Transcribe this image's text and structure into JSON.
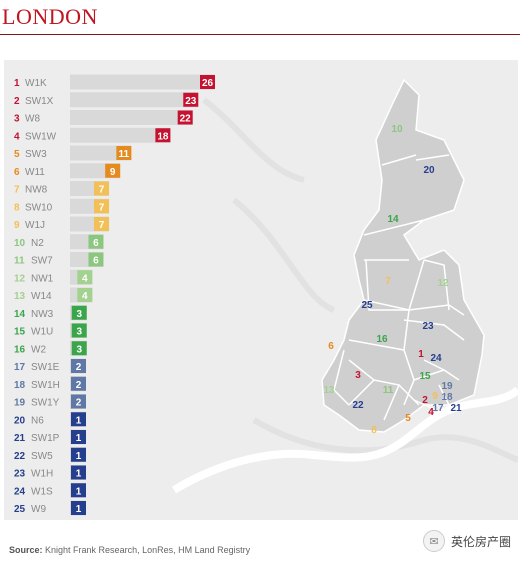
{
  "title": "LONDON",
  "source_label": "Source:",
  "source_text": "Knight Frank Research, LonRes, HM Land Registry",
  "brand": {
    "icon": "wechat-bubble-icon",
    "text": "英伦房产圈"
  },
  "colors": {
    "band_1_4": "#c41230",
    "band_5_6": "#e58a1f",
    "band_7_9": "#f2c056",
    "band_10_11": "#8bc77e",
    "band_12_13": "#a3d18f",
    "band_14_16": "#3aa54b",
    "band_17_19": "#5f78a6",
    "band_20_25": "#253f8e"
  },
  "chart_data": {
    "type": "bar",
    "orientation": "horizontal",
    "categories": [
      "W1K",
      "SW1X",
      "W8",
      "SW1W",
      "SW3",
      "W11",
      "NW8",
      "SW10",
      "W1J",
      "N2",
      "SW7",
      "NW1",
      "W14",
      "NW3",
      "W1U",
      "W2",
      "SW1E",
      "SW1H",
      "SW1Y",
      "N6",
      "SW1P",
      "SW5",
      "W1H",
      "W1S",
      "W9"
    ],
    "ranks": [
      1,
      2,
      3,
      4,
      5,
      6,
      7,
      8,
      9,
      10,
      11,
      12,
      13,
      14,
      15,
      16,
      17,
      18,
      19,
      20,
      21,
      22,
      23,
      24,
      25
    ],
    "values": [
      26,
      23,
      22,
      18,
      11,
      9,
      7,
      7,
      7,
      6,
      6,
      4,
      4,
      3,
      3,
      3,
      2,
      2,
      2,
      1,
      1,
      1,
      1,
      1,
      1
    ],
    "xlim": [
      0,
      26
    ],
    "grid": false,
    "legend": "none"
  },
  "map": {
    "labels": [
      {
        "rank": "10"
      },
      {
        "rank": "20"
      },
      {
        "rank": "14"
      },
      {
        "rank": "7"
      },
      {
        "rank": "12"
      },
      {
        "rank": "25"
      },
      {
        "rank": "23"
      },
      {
        "rank": "16"
      },
      {
        "rank": "6"
      },
      {
        "rank": "1"
      },
      {
        "rank": "24"
      },
      {
        "rank": "3"
      },
      {
        "rank": "15"
      },
      {
        "rank": "13"
      },
      {
        "rank": "11"
      },
      {
        "rank": "19"
      },
      {
        "rank": "22"
      },
      {
        "rank": "2"
      },
      {
        "rank": "9"
      },
      {
        "rank": "18"
      },
      {
        "rank": "5"
      },
      {
        "rank": "4"
      },
      {
        "rank": "17"
      },
      {
        "rank": "21"
      },
      {
        "rank": "8"
      }
    ]
  }
}
